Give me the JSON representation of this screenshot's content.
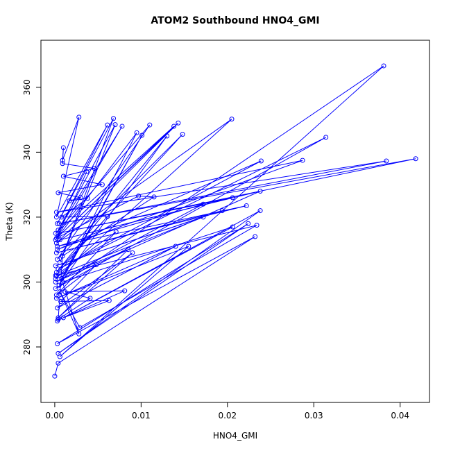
{
  "chart_data": {
    "type": "scatter-line",
    "title": "ATOM2 Southbound HNO4_GMI",
    "x_label": "HNO4_GMI",
    "y_label": "Theta (K)",
    "color": "#0000ff",
    "x": [
      0.0,
      0.0004,
      0.0232,
      0.0003,
      0.0224,
      0.0004,
      0.0238,
      0.0003,
      0.0206,
      0.0009,
      0.0028,
      0.0006,
      0.0029,
      0.0234,
      0.0002,
      0.0172,
      0.0001,
      0.0194,
      0.0002,
      0.0222,
      0.0003,
      0.0172,
      0.0001,
      0.0238,
      0.0006,
      0.0206,
      0.0004,
      0.0418,
      0.0005,
      0.0384,
      0.0002,
      0.0287,
      0.0003,
      0.0239,
      0.0004,
      0.0314,
      0.0001,
      0.0381,
      0.0006,
      0.0155,
      0.0002,
      0.014,
      0.0003,
      0.009,
      0.0004,
      0.0085,
      0.0001,
      0.0205,
      0.0002,
      0.0143,
      0.0004,
      0.0138,
      0.0001,
      0.011,
      0.0003,
      0.0148,
      0.0002,
      0.013,
      0.0005,
      0.0101,
      0.0008,
      0.0095,
      0.0001,
      0.0078,
      0.0004,
      0.007,
      0.0006,
      0.0068,
      0.0003,
      0.0061,
      0.0002,
      0.0028,
      0.0009,
      0.001,
      0.0009,
      0.0046,
      0.001,
      0.0055,
      0.0004,
      0.003,
      0.0017,
      0.0038,
      0.0008,
      0.0061,
      0.0001,
      0.0071,
      0.0002,
      0.0048,
      0.0007,
      0.0063,
      0.001,
      0.0081,
      0.0012,
      0.0041,
      0.0004,
      0.0009,
      0.0115,
      0.0097,
      0.0002,
      0.0037
    ],
    "values": [
      271,
      275,
      314,
      281,
      318,
      278,
      322,
      288,
      317,
      300,
      284,
      297,
      286,
      317.5,
      302,
      320,
      305,
      322,
      309,
      323.5,
      311,
      324,
      300,
      328,
      313,
      326,
      315,
      338,
      318,
      337.3,
      321.5,
      337.5,
      310,
      337.3,
      304,
      344.6,
      298,
      366.6,
      277,
      311,
      295,
      311,
      292,
      309,
      289,
      310,
      301,
      350.2,
      312,
      349,
      314,
      348,
      315,
      348.4,
      307,
      345.5,
      303,
      345,
      299,
      345.2,
      301,
      346,
      313,
      348,
      316,
      348.5,
      306,
      350.4,
      318,
      348.4,
      320,
      350.8,
      337.5,
      341.4,
      336.5,
      335,
      332.6,
      330,
      327.5,
      326,
      325,
      325.8,
      320,
      320.2,
      302,
      315.5,
      296,
      305.3,
      294,
      294.3,
      289,
      297.3,
      297,
      295,
      288.5,
      308,
      326.2,
      326.5,
      313.5,
      334
    ],
    "xlim": [
      -0.0016,
      0.0434
    ],
    "ylim": [
      262.9,
      374.5
    ],
    "xticks": [
      {
        "value": 0,
        "label": "0.00"
      },
      0.01,
      0.02,
      0.03,
      0.04
    ],
    "yticks": [
      280,
      300,
      320,
      340,
      360
    ]
  }
}
